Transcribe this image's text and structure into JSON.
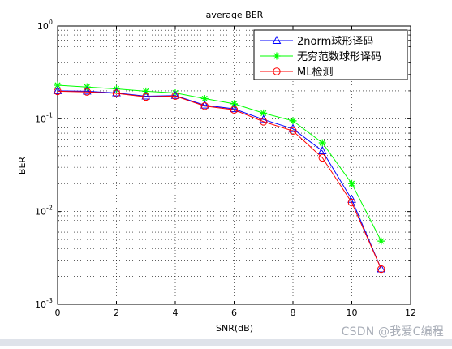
{
  "chart_data": {
    "type": "line",
    "title": "average BER",
    "xlabel": "SNR(dB)",
    "ylabel": "BER",
    "xlim": [
      0,
      12
    ],
    "ylim": [
      0.001,
      1
    ],
    "yscale": "log",
    "grid": true,
    "legend_position": "top-right",
    "x_ticks": [
      0,
      2,
      4,
      6,
      8,
      10,
      12
    ],
    "y_ticks": [
      {
        "value": 1,
        "base": "10",
        "exp": "0"
      },
      {
        "value": 0.1,
        "base": "10",
        "exp": "-1"
      },
      {
        "value": 0.01,
        "base": "10",
        "exp": "-2"
      },
      {
        "value": 0.001,
        "base": "10",
        "exp": "-3"
      }
    ],
    "x": [
      0,
      1,
      2,
      3,
      4,
      5,
      6,
      7,
      8,
      9,
      10,
      11
    ],
    "series": [
      {
        "name": "2norm球形译码",
        "color": "#0000ff",
        "marker": "triangle",
        "values": [
          0.2,
          0.198,
          0.19,
          0.175,
          0.178,
          0.14,
          0.128,
          0.098,
          0.078,
          0.045,
          0.0135,
          0.0024
        ]
      },
      {
        "name": "无穷范数球形译码",
        "color": "#00ff00",
        "marker": "star",
        "values": [
          0.23,
          0.22,
          0.21,
          0.198,
          0.19,
          0.165,
          0.145,
          0.115,
          0.095,
          0.055,
          0.02,
          0.0048
        ]
      },
      {
        "name": "ML检测",
        "color": "#ff0000",
        "marker": "circle",
        "values": [
          0.198,
          0.195,
          0.188,
          0.172,
          0.176,
          0.137,
          0.125,
          0.093,
          0.074,
          0.038,
          0.0125,
          0.0024
        ]
      }
    ]
  },
  "watermark": "CSDN @我爱C编程"
}
